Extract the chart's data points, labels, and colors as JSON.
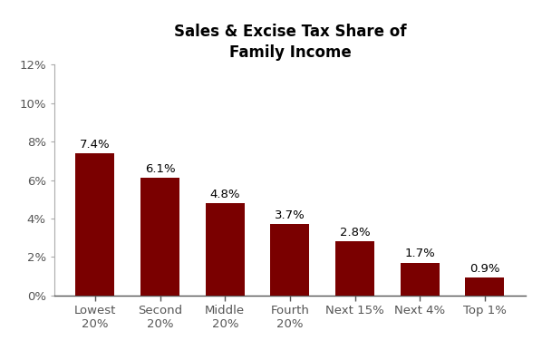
{
  "categories": [
    "Lowest\n20%",
    "Second\n20%",
    "Middle\n20%",
    "Fourth\n20%",
    "Next 15%",
    "Next 4%",
    "Top 1%"
  ],
  "values": [
    7.4,
    6.1,
    4.8,
    3.7,
    2.8,
    1.7,
    0.9
  ],
  "labels": [
    "7.4%",
    "6.1%",
    "4.8%",
    "3.7%",
    "2.8%",
    "1.7%",
    "0.9%"
  ],
  "bar_color": "#7a0000",
  "title_line1": "Sales & Excise Tax Share of",
  "title_line2": "Family Income",
  "ylim": [
    0,
    12
  ],
  "yticks": [
    0,
    2,
    4,
    6,
    8,
    10,
    12
  ],
  "ytick_labels": [
    "0%",
    "2%",
    "4%",
    "6%",
    "8%",
    "10%",
    "12%"
  ],
  "background_color": "#ffffff",
  "title_fontsize": 12,
  "label_fontsize": 9.5,
  "tick_fontsize": 9.5
}
